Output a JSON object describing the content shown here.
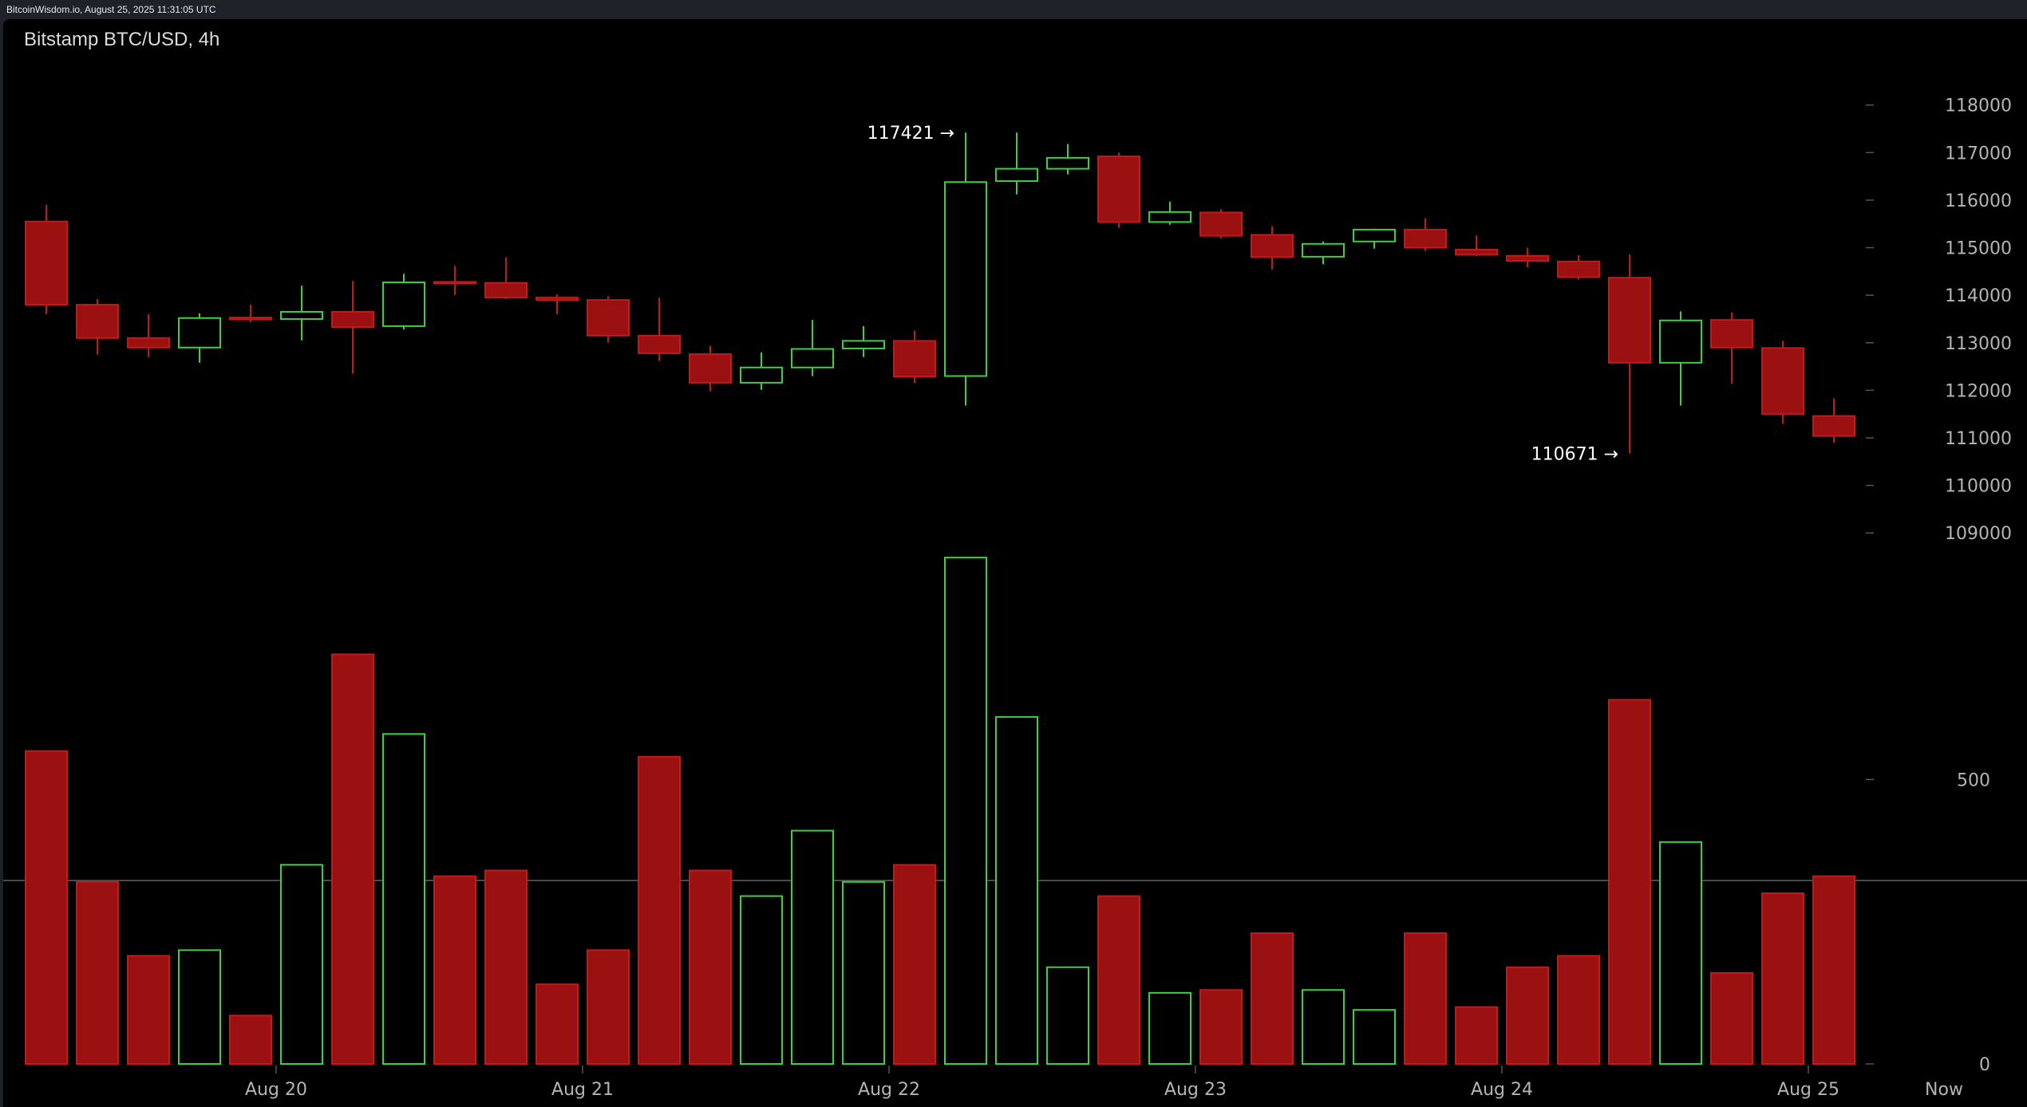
{
  "header": {
    "source": "BitcoinWisdom.io, August 25, 2025 11:31:05 UTC"
  },
  "chart_data": {
    "type": "candlestick",
    "title": "Bitstamp BTC/USD, 4h",
    "x_tick_labels": [
      "Aug 20",
      "Aug 21",
      "Aug 22",
      "Aug 23",
      "Aug 24",
      "Aug 25",
      "Now"
    ],
    "y_ticks": [
      109000,
      110000,
      111000,
      112000,
      113000,
      114000,
      115000,
      116000,
      117000,
      118000
    ],
    "ylim": [
      108400,
      118800
    ],
    "volume_ticks": [
      0,
      500
    ],
    "volume_ylim": [
      0,
      900
    ],
    "annotations": [
      {
        "label": "117421 →",
        "price": 117421,
        "candle": 18
      },
      {
        "label": "110671 →",
        "price": 110671,
        "candle": 31
      }
    ],
    "colors": {
      "up": "#3ecf3e",
      "down": "#9b1111",
      "down_edge": "#c01a1a"
    },
    "candles": [
      {
        "open": 115550,
        "high": 115900,
        "low": 113600,
        "close": 113800,
        "volume": 550
      },
      {
        "open": 113800,
        "high": 113920,
        "low": 112750,
        "close": 113100,
        "volume": 320
      },
      {
        "open": 113100,
        "high": 113600,
        "low": 112700,
        "close": 112900,
        "volume": 190
      },
      {
        "open": 112900,
        "high": 113620,
        "low": 112580,
        "close": 113520,
        "volume": 200
      },
      {
        "open": 113530,
        "high": 113800,
        "low": 113430,
        "close": 113490,
        "volume": 85
      },
      {
        "open": 113500,
        "high": 114200,
        "low": 113050,
        "close": 113650,
        "volume": 350
      },
      {
        "open": 113650,
        "high": 114300,
        "low": 112350,
        "close": 113330,
        "volume": 720
      },
      {
        "open": 113350,
        "high": 114450,
        "low": 113280,
        "close": 114270,
        "volume": 580
      },
      {
        "open": 114280,
        "high": 114620,
        "low": 114000,
        "close": 114260,
        "volume": 330
      },
      {
        "open": 114260,
        "high": 114800,
        "low": 113920,
        "close": 113950,
        "volume": 340
      },
      {
        "open": 113950,
        "high": 114020,
        "low": 113600,
        "close": 113900,
        "volume": 140
      },
      {
        "open": 113900,
        "high": 113980,
        "low": 113000,
        "close": 113150,
        "volume": 200
      },
      {
        "open": 113150,
        "high": 113950,
        "low": 112620,
        "close": 112780,
        "volume": 540
      },
      {
        "open": 112760,
        "high": 112940,
        "low": 111980,
        "close": 112160,
        "volume": 340
      },
      {
        "open": 112160,
        "high": 112800,
        "low": 112010,
        "close": 112480,
        "volume": 295
      },
      {
        "open": 112480,
        "high": 113480,
        "low": 112300,
        "close": 112870,
        "volume": 410
      },
      {
        "open": 112880,
        "high": 113350,
        "low": 112700,
        "close": 113040,
        "volume": 320
      },
      {
        "open": 113040,
        "high": 113260,
        "low": 112150,
        "close": 112290,
        "volume": 350
      },
      {
        "open": 112300,
        "high": 117421,
        "low": 111680,
        "close": 116380,
        "volume": 890
      },
      {
        "open": 116400,
        "high": 117421,
        "low": 116120,
        "close": 116660,
        "volume": 610
      },
      {
        "open": 116660,
        "high": 117180,
        "low": 116540,
        "close": 116890,
        "volume": 170
      },
      {
        "open": 116920,
        "high": 117000,
        "low": 115420,
        "close": 115540,
        "volume": 295
      },
      {
        "open": 115540,
        "high": 115970,
        "low": 115480,
        "close": 115750,
        "volume": 125
      },
      {
        "open": 115740,
        "high": 115810,
        "low": 115190,
        "close": 115250,
        "volume": 130
      },
      {
        "open": 115270,
        "high": 115450,
        "low": 114540,
        "close": 114800,
        "volume": 230
      },
      {
        "open": 114810,
        "high": 115130,
        "low": 114650,
        "close": 115080,
        "volume": 130
      },
      {
        "open": 115130,
        "high": 115400,
        "low": 114980,
        "close": 115380,
        "volume": 95
      },
      {
        "open": 115380,
        "high": 115620,
        "low": 114930,
        "close": 115000,
        "volume": 230
      },
      {
        "open": 114960,
        "high": 115260,
        "low": 114820,
        "close": 114850,
        "volume": 100
      },
      {
        "open": 114830,
        "high": 115000,
        "low": 114590,
        "close": 114720,
        "volume": 170
      },
      {
        "open": 114710,
        "high": 114840,
        "low": 114330,
        "close": 114380,
        "volume": 190
      },
      {
        "open": 114370,
        "high": 114860,
        "low": 110671,
        "close": 112580,
        "volume": 640
      },
      {
        "open": 112580,
        "high": 113660,
        "low": 111680,
        "close": 113470,
        "volume": 390
      },
      {
        "open": 113480,
        "high": 113640,
        "low": 112140,
        "close": 112900,
        "volume": 160
      },
      {
        "open": 112890,
        "high": 113040,
        "low": 111300,
        "close": 111500,
        "volume": 300
      },
      {
        "open": 111460,
        "high": 111830,
        "low": 110900,
        "close": 111040,
        "volume": 330
      }
    ]
  }
}
